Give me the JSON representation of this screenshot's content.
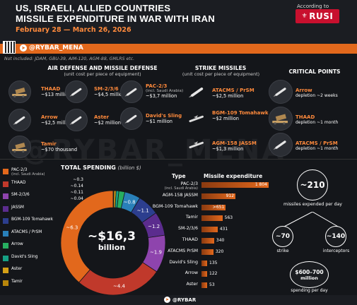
{
  "header": {
    "title_line1": "US, ISRAELI, ALLIED COUNTRIES",
    "title_line2": "MISSILE EXPENDITURE IN WAR WITH IRAN",
    "dates": "February 28 — March 26, 2026",
    "according_to": "According to",
    "source": "RUSI",
    "channel": "@RYBAR_MENA",
    "not_included": "Not included: JDAM, GBU-39, AIM-120, AGM-88, GMLRS etc."
  },
  "air_defense": {
    "title": "AIR DEFENSE AND MISSILE DEFENSE",
    "subtitle": "(unit cost per piece of equipment)",
    "items": [
      {
        "name": "THAAD",
        "cost": "~$13 million",
        "icon": "thaad-launcher-icon"
      },
      {
        "name": "SM-2/3/6",
        "cost": "~$4,5 million",
        "icon": "missile-icon"
      },
      {
        "name": "PAC-2/3",
        "note": "(incl. Saudi Arabia)",
        "cost": "~$3,7 million",
        "icon": "missile-icon"
      },
      {
        "name": "Arrow",
        "cost": "~$2,5 million",
        "icon": "missile-icon"
      },
      {
        "name": "Aster",
        "cost": "~$2 million",
        "icon": "missile-icon"
      },
      {
        "name": "David's Sling",
        "cost": "~$1 million",
        "icon": "missile-icon"
      },
      {
        "name": "Tamir",
        "cost": "~$70 thousand",
        "icon": "iron-dome-launcher-icon"
      }
    ]
  },
  "strike": {
    "title": "STRIKE MISSILES",
    "subtitle": "(unit cost per piece of equipment)",
    "items": [
      {
        "name": "ATACMS / PrSM",
        "cost": "~$2,5 million",
        "icon": "missile-icon"
      },
      {
        "name": "BGM-109 Tomahawk",
        "cost": "~$2 million",
        "icon": "cruise-missile-icon"
      },
      {
        "name": "AGM-158 JASSM",
        "cost": "~$1,3 million",
        "icon": "cruise-missile-icon"
      }
    ]
  },
  "critical": {
    "title": "CRITICAL POINTS",
    "items": [
      {
        "name": "Arrow",
        "text": "depletion ~2 weeks"
      },
      {
        "name": "THAAD",
        "text": "depletion ~1 month"
      },
      {
        "name": "ATACMS / PrSM",
        "text": "depletion ~1 month"
      }
    ]
  },
  "total": {
    "title": "TOTAL SPENDING",
    "unit": "(billion $)",
    "center_value": "~$16,3",
    "center_unit": "billion"
  },
  "legend": [
    {
      "name": "PAC-2/3",
      "note": "(incl. Saudi Arabia)",
      "color": "#e2681c"
    },
    {
      "name": "THAAD",
      "color": "#c0392b"
    },
    {
      "name": "SM-2/3/6",
      "color": "#8e44ad"
    },
    {
      "name": "JASSM",
      "color": "#5b2c8e"
    },
    {
      "name": "BGM-109 Tomahawk",
      "color": "#2c3e8e"
    },
    {
      "name": "ATACMS / PrSM",
      "color": "#2980b9"
    },
    {
      "name": "Arrow",
      "color": "#27ae60"
    },
    {
      "name": "David's Sling",
      "color": "#16a085"
    },
    {
      "name": "Aster",
      "color": "#d4a017"
    },
    {
      "name": "Tamir",
      "color": "#b8860b"
    }
  ],
  "chart_data": [
    {
      "type": "pie",
      "title": "TOTAL SPENDING",
      "unit": "(billion $)",
      "categories": [
        "PAC-2/3",
        "THAAD",
        "SM-2/3/6",
        "JASSM",
        "BGM-109 Tomahawk",
        "ATACMS / PrSM",
        "Arrow",
        "David's Sling",
        "Aster",
        "Tamir"
      ],
      "values": [
        6.3,
        4.4,
        1.9,
        1.2,
        1.1,
        0.8,
        0.3,
        0.14,
        0.11,
        0.04
      ],
      "labels": [
        "~6.3",
        "~4.4",
        "~1.9",
        "~1.2",
        "~1.1",
        "~0.8",
        "~0.3",
        "~0.14",
        "~0.11",
        "~0.04"
      ]
    },
    {
      "type": "bar",
      "xlabel": "Type",
      "ylabel": "Missile expenditure",
      "categories": [
        "PAC-2/3",
        "AGM-158 JASSM",
        "BGM-109 Tomahawk",
        "Tamir",
        "SM-2/3/6",
        "THAAD",
        "ATACMS PrSM",
        "David's Sling",
        "Arrow",
        "Aster"
      ],
      "category_notes": [
        "(incl. Saudi Arabia)",
        "",
        "",
        "",
        "",
        "",
        "",
        "",
        "",
        ""
      ],
      "values": [
        1804,
        912,
        651,
        563,
        431,
        340,
        320,
        135,
        122,
        53
      ],
      "value_labels": [
        "1 804",
        "912",
        ">651",
        "563",
        "431",
        "340",
        "320",
        "135",
        "122",
        "53"
      ]
    }
  ],
  "stats": {
    "per_day_value": "~210",
    "per_day_label": "missiles expended per day",
    "strike_value": "~70",
    "strike_label": "strike",
    "interceptors_value": "~140",
    "interceptors_label": "interceptors",
    "spending_value": "$600–700",
    "spending_unit": "million",
    "spending_label": "spending per day"
  },
  "footer": {
    "channel": "@RYBAR"
  }
}
